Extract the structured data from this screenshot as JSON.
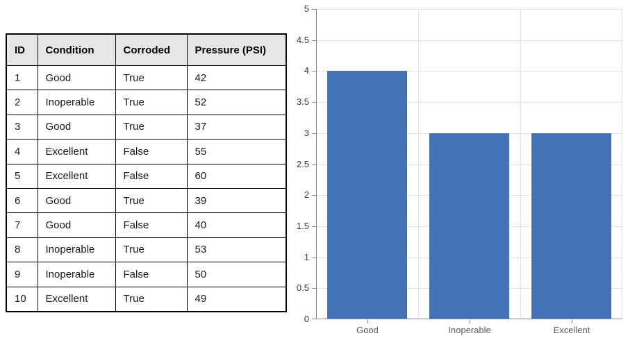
{
  "table": {
    "headers": [
      "ID",
      "Condition",
      "Corroded",
      "Pressure (PSI)"
    ],
    "rows": [
      [
        "1",
        "Good",
        "True",
        "42"
      ],
      [
        "2",
        "Inoperable",
        "True",
        "52"
      ],
      [
        "3",
        "Good",
        "True",
        "37"
      ],
      [
        "4",
        "Excellent",
        "False",
        "55"
      ],
      [
        "5",
        "Excellent",
        "False",
        "60"
      ],
      [
        "6",
        "Good",
        "True",
        "39"
      ],
      [
        "7",
        "Good",
        "False",
        "40"
      ],
      [
        "8",
        "Inoperable",
        "True",
        "53"
      ],
      [
        "9",
        "Inoperable",
        "False",
        "50"
      ],
      [
        "10",
        "Excellent",
        "True",
        "49"
      ]
    ]
  },
  "chart_data": {
    "type": "bar",
    "categories": [
      "Good",
      "Inoperable",
      "Excellent"
    ],
    "values": [
      4,
      3,
      3
    ],
    "title": "",
    "xlabel": "",
    "ylabel": "",
    "ylim": [
      0,
      5
    ],
    "yticks": [
      0,
      0.5,
      1,
      1.5,
      2,
      2.5,
      3,
      3.5,
      4,
      4.5,
      5
    ],
    "ytick_labels": [
      "0",
      "0.5",
      "1",
      "1.5",
      "2",
      "2.5",
      "3",
      "3.5",
      "4",
      "4.5",
      "5"
    ],
    "grid": true,
    "legend_position": "none",
    "bar_color": "#4273B9"
  },
  "colors": {
    "table_header_bg": "#E7E6E6",
    "table_border": "#000000",
    "bar_fill": "#4273B9",
    "gridline": "#E2E2E2",
    "axis_line": "#8A8A8A",
    "tick_mark": "#8A8A8A",
    "y_tick_label": "#3B3B3B",
    "x_category_label": "#595959"
  }
}
